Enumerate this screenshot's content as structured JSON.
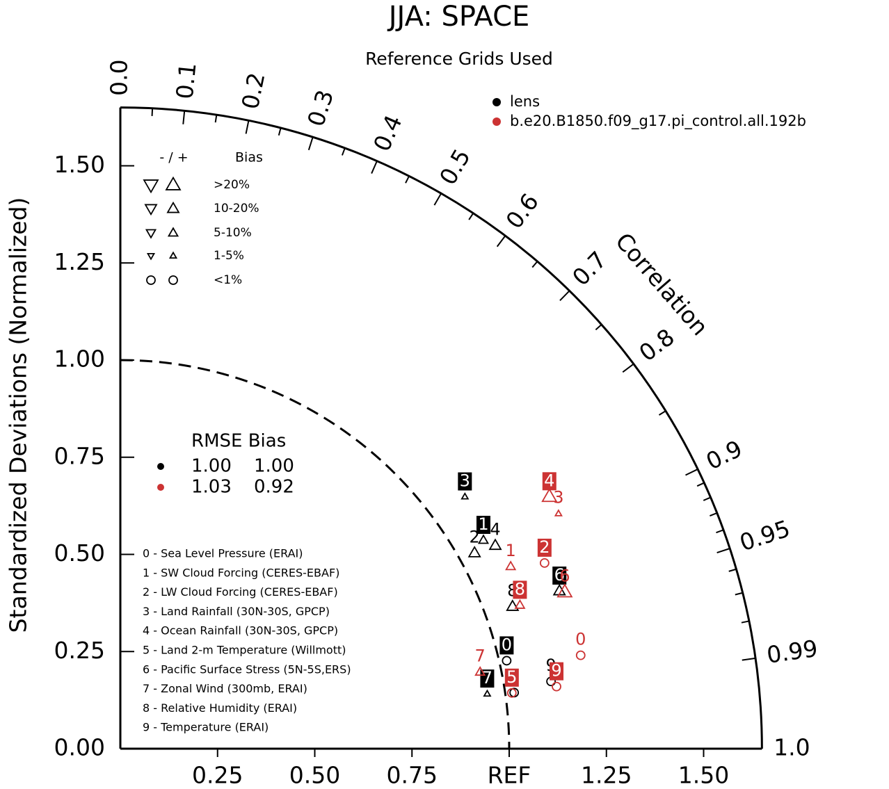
{
  "chart_data": {
    "type": "taylor",
    "title": "JJA: SPACE",
    "subtitle": "Reference Grids Used",
    "y_label": "Standardized Deviations (Normalized)",
    "corr_label": "Correlation",
    "xlim": [
      0,
      1.65
    ],
    "ylim": [
      0,
      1.65
    ],
    "xticks": [
      0.25,
      {
        "value": 0.5,
        "label": "0.50"
      },
      0.75,
      {
        "value": 1,
        "label": "REF"
      },
      1.25,
      {
        "value": 1.5,
        "label": "1.50"
      }
    ],
    "yticks": [
      {
        "value": 0,
        "label": "0.00"
      },
      0.25,
      {
        "value": 0.5,
        "label": "0.50"
      },
      0.75,
      {
        "value": 1,
        "label": "1.00"
      },
      1.25,
      {
        "value": 1.5,
        "label": "1.50"
      }
    ],
    "corr_ticks": [
      {
        "value": 0,
        "label": "0.0"
      },
      0.1,
      0.2,
      0.3,
      0.4,
      0.5,
      0.6,
      0.7,
      0.8,
      0.9,
      0.95,
      0.99,
      {
        "value": 1,
        "label": "1.0"
      }
    ],
    "corr_minor_ticks": [
      0.05,
      0.15,
      0.25,
      0.35,
      0.45,
      0.55,
      0.65,
      0.75,
      0.85,
      0.91,
      0.92,
      0.93,
      0.94,
      0.96,
      0.97,
      0.98
    ],
    "series": [
      {
        "name": "lens",
        "color": "#000000",
        "labels": [
          "0",
          "1",
          "2",
          "3",
          "4",
          "5",
          "6",
          "7",
          "8",
          "9"
        ],
        "std": [
          1.019,
          1.077,
          1.041,
          1.098,
          1.097,
          1.023,
          1.2,
          0.954,
          1.073,
          1.121
        ],
        "corr": [
          0.975,
          0.867,
          0.875,
          0.807,
          0.879,
          0.99,
          0.941,
          0.989,
          0.94,
          0.988
        ],
        "bias_class": [
          4,
          2,
          1,
          3,
          1,
          4,
          1,
          3,
          1,
          4
        ],
        "boxed": [
          true,
          true,
          false,
          true,
          false,
          false,
          true,
          true,
          false,
          false
        ]
      },
      {
        "name": "b.e20.B1850.f09_g17.pi_control.all.192b",
        "color": "#cc3333",
        "labels": [
          "0",
          "1",
          "2",
          "3",
          "4",
          "5",
          "6",
          "7",
          "8",
          "9"
        ],
        "std": [
          1.208,
          1.108,
          1.191,
          1.279,
          1.28,
          1.017,
          1.212,
          0.946,
          1.092,
          1.133
        ],
        "corr": [
          0.98,
          0.906,
          0.916,
          0.881,
          0.862,
          0.99,
          0.943,
          0.978,
          0.941,
          0.99
        ],
        "bias_class": [
          4,
          2,
          4,
          3,
          0,
          4,
          0,
          2,
          2,
          4
        ],
        "boxed": [
          false,
          false,
          true,
          false,
          true,
          true,
          false,
          false,
          true,
          true
        ]
      }
    ],
    "bias_legend": {
      "header_sign": "- / +",
      "header": "Bias",
      "rows": [
        ">20%",
        "10-20%",
        "5-10%",
        "1-5%",
        "<1%"
      ]
    },
    "summary": {
      "header": "RMSE Bias",
      "rows": [
        [
          "1.00",
          "1.00"
        ],
        [
          "1.03",
          "0.92"
        ]
      ]
    },
    "variables": [
      "0 - Sea Level Pressure (ERAI)",
      "1 - SW Cloud Forcing (CERES-EBAF)",
      "2 - LW Cloud Forcing (CERES-EBAF)",
      "3 - Land Rainfall (30N-30S, GPCP)",
      "4 - Ocean Rainfall (30N-30S, GPCP)",
      "5 - Land 2-m Temperature (Willmott)",
      "6 - Pacific Surface Stress (5N-5S,ERS)",
      "7 - Zonal Wind (300mb, ERAI)",
      "8 - Relative Humidity (ERAI)",
      "9 - Temperature (ERAI)"
    ]
  }
}
